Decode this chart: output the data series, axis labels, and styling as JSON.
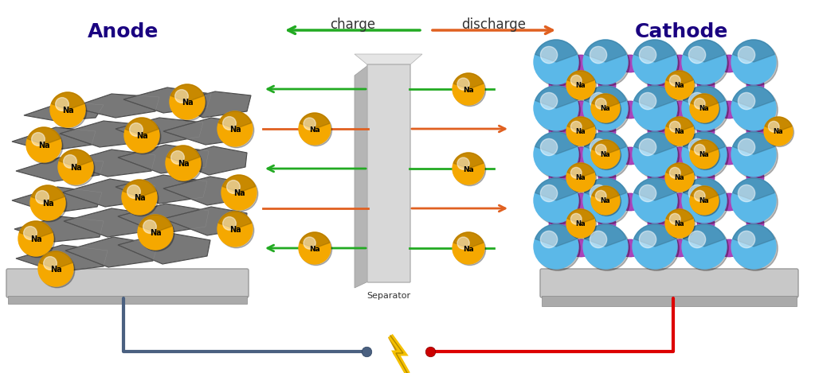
{
  "anode_label": "Anode",
  "cathode_label": "Cathode",
  "charge_label": "charge",
  "discharge_label": "discharge",
  "separator_label": "Separator",
  "na_label": "Na",
  "bg_color": "#ffffff",
  "cathode_blue": "#5bb8e8",
  "cathode_purple": "#aa44bb",
  "na_gold": "#f5a800",
  "arrow_green": "#22aa22",
  "arrow_orange": "#e06020",
  "wire_blue": "#4a6080",
  "wire_red": "#dd0000",
  "lightning_color": "#f5c000",
  "anode_label_color": "#1a0080",
  "cathode_label_color": "#1a0080"
}
